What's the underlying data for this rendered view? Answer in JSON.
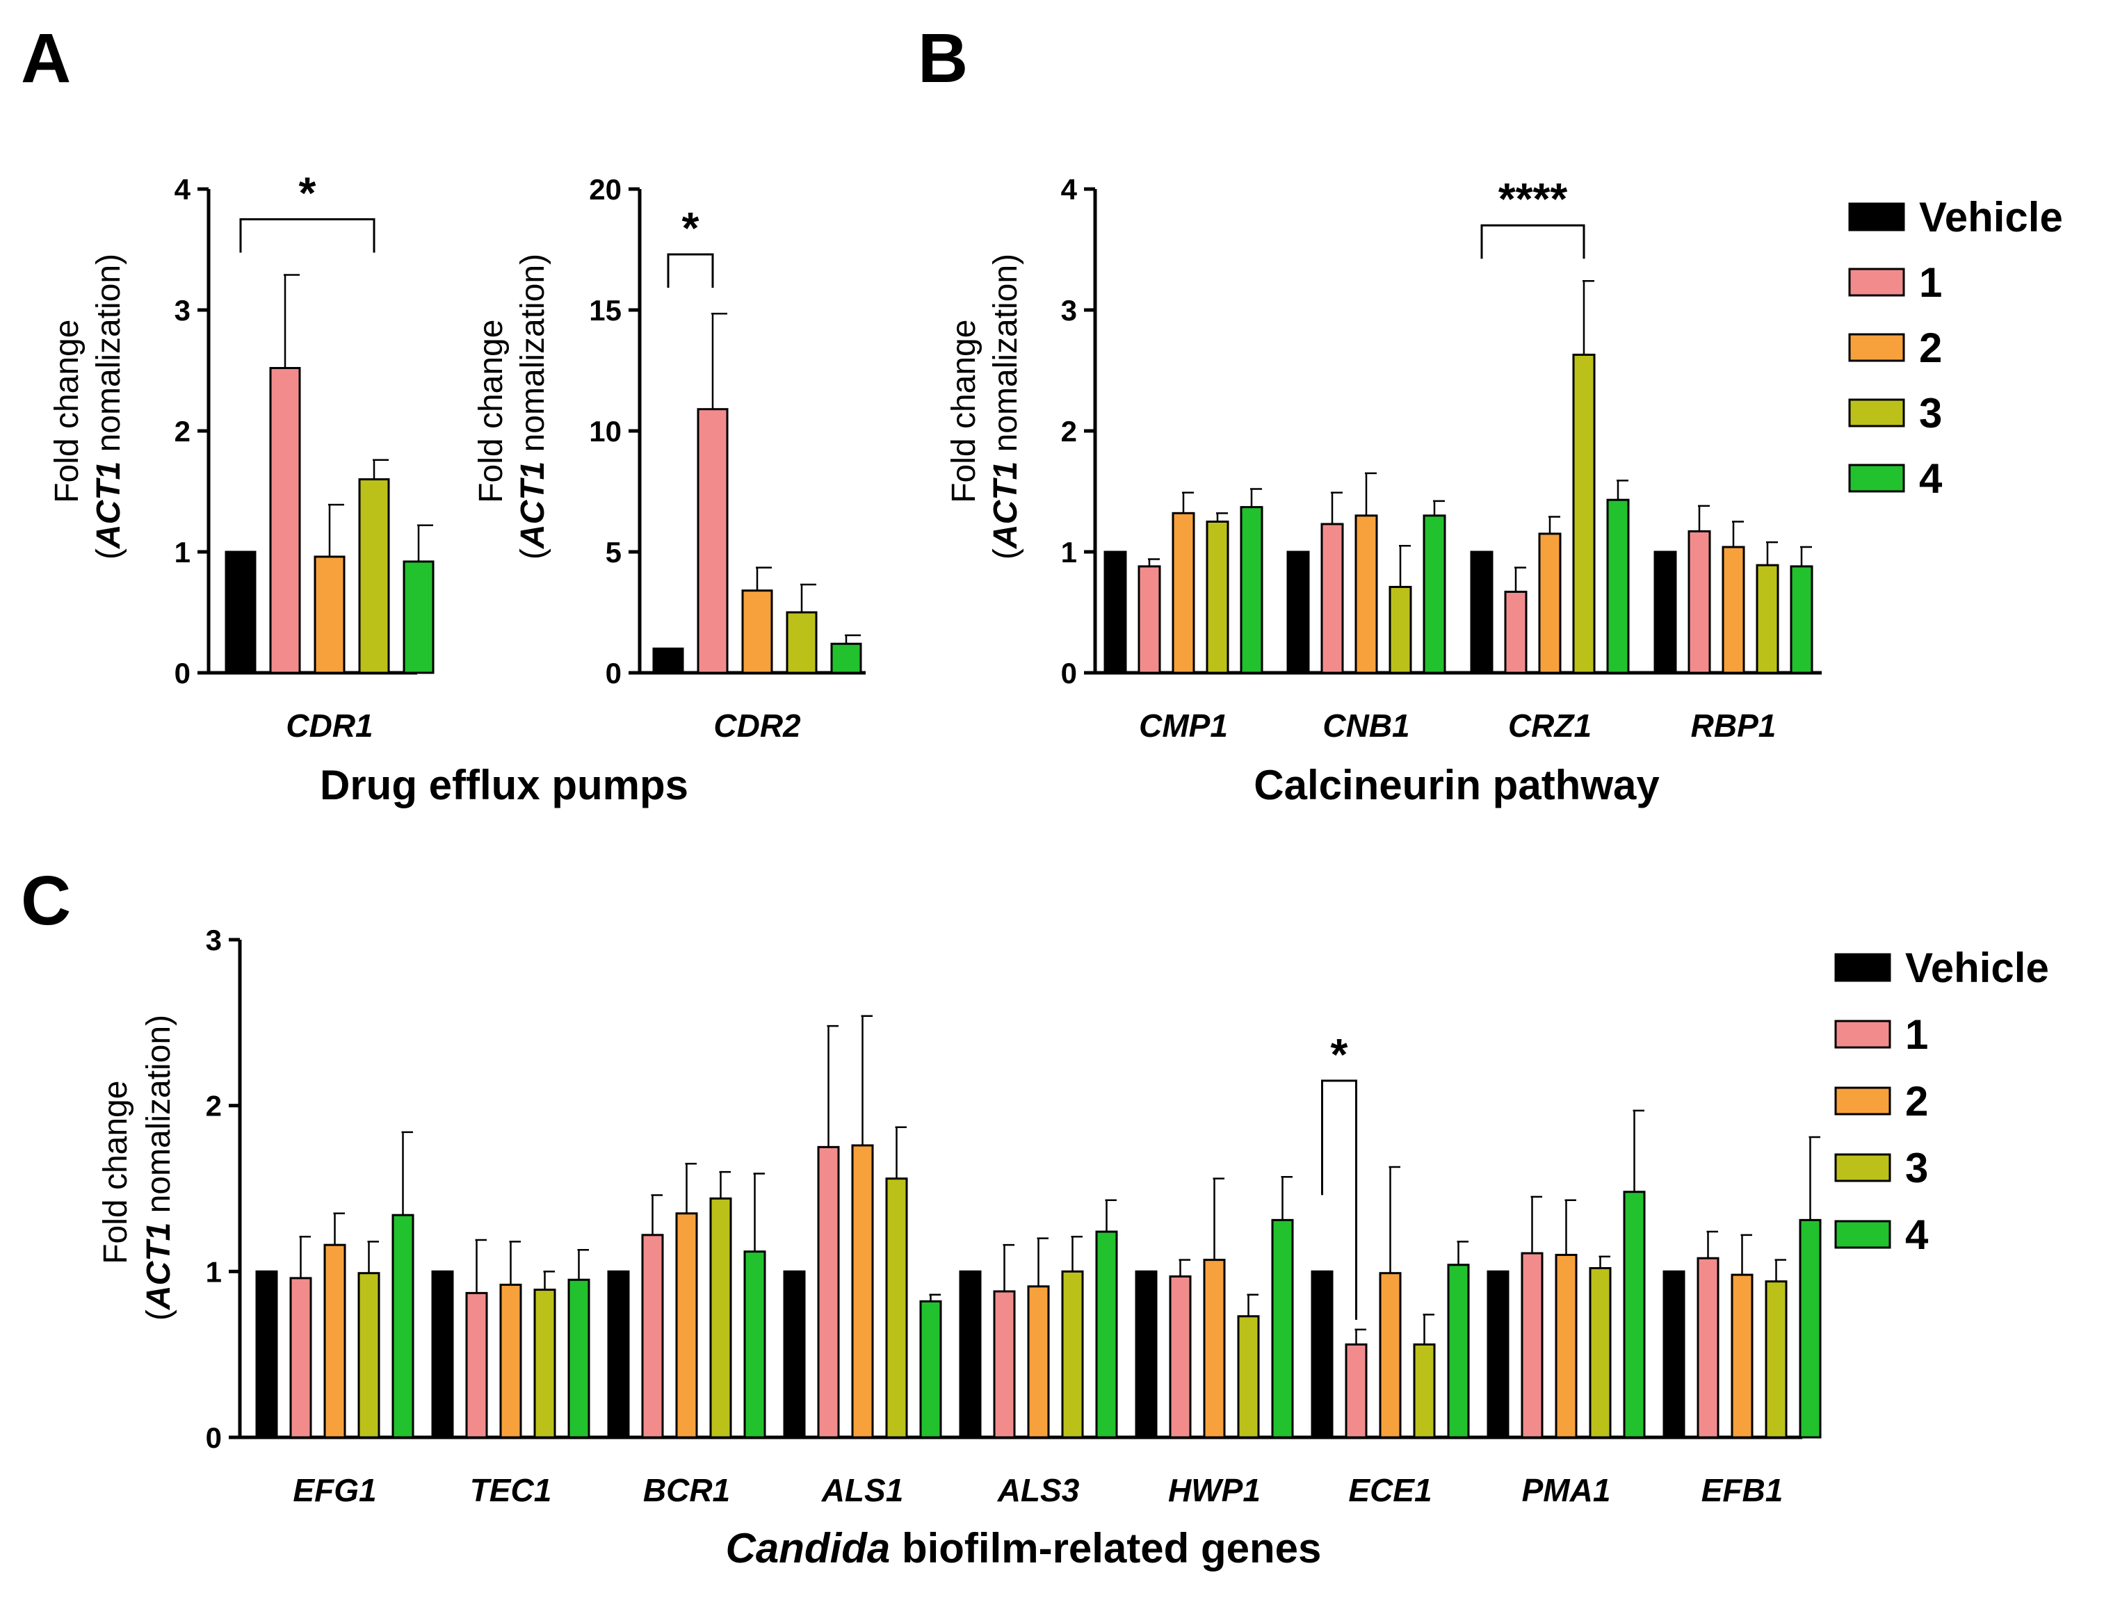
{
  "series_colors": {
    "Vehicle": "#000000",
    "1": "#f28c8c",
    "2": "#f7a13c",
    "3": "#bcc11a",
    "4": "#22c12e"
  },
  "legend": {
    "series": [
      "Vehicle",
      "1",
      "2",
      "3",
      "4"
    ]
  },
  "panels": {
    "a": {
      "letter": "A",
      "group_label": "Drug efflux pumps"
    },
    "b": {
      "letter": "B",
      "group_label": "Calcineurin pathway"
    },
    "c": {
      "letter": "C",
      "group_label_italic": "Candida",
      "group_label_rest": " biofilm-related genes"
    }
  },
  "y_axis_label": {
    "line1": "Fold change",
    "open": "(",
    "gene": "ACT1",
    "rest": " nomalization)"
  },
  "chart_data": [
    {
      "id": "A1",
      "type": "bar",
      "title": "",
      "xlabel": "Drug efflux pumps",
      "ylabel": "Fold change (ACT1 nomalization)",
      "ylim": [
        0,
        4
      ],
      "yticks": [
        0,
        1,
        2,
        3,
        4
      ],
      "categories": [
        "CDR1"
      ],
      "series": [
        {
          "name": "Vehicle",
          "values": [
            1.0
          ],
          "errors": [
            0
          ]
        },
        {
          "name": "1",
          "values": [
            2.52
          ],
          "errors": [
            0.77
          ]
        },
        {
          "name": "2",
          "values": [
            0.96
          ],
          "errors": [
            0.43
          ]
        },
        {
          "name": "3",
          "values": [
            1.6
          ],
          "errors": [
            0.16
          ]
        },
        {
          "name": "4",
          "values": [
            0.92
          ],
          "errors": [
            0.3
          ]
        }
      ],
      "significance": [
        {
          "category": "CDR1",
          "from": "Vehicle",
          "to": "3",
          "label": "*",
          "y": 3.75
        }
      ]
    },
    {
      "id": "A2",
      "type": "bar",
      "title": "",
      "xlabel": "Drug efflux pumps",
      "ylabel": "Fold change (ACT1 nomalization)",
      "ylim": [
        0,
        20
      ],
      "yticks": [
        0,
        5,
        10,
        15,
        20
      ],
      "categories": [
        "CDR2"
      ],
      "series": [
        {
          "name": "Vehicle",
          "values": [
            1.0
          ],
          "errors": [
            0
          ]
        },
        {
          "name": "1",
          "values": [
            10.9
          ],
          "errors": [
            3.95
          ]
        },
        {
          "name": "2",
          "values": [
            3.4
          ],
          "errors": [
            0.95
          ]
        },
        {
          "name": "3",
          "values": [
            2.5
          ],
          "errors": [
            1.15
          ]
        },
        {
          "name": "4",
          "values": [
            1.2
          ],
          "errors": [
            0.35
          ]
        }
      ],
      "significance": [
        {
          "category": "CDR2",
          "from": "Vehicle",
          "to": "1",
          "label": "*",
          "y": 17.3
        }
      ]
    },
    {
      "id": "B",
      "type": "bar",
      "title": "",
      "xlabel": "Calcineurin pathway",
      "ylabel": "Fold change (ACT1 nomalization)",
      "ylim": [
        0,
        4
      ],
      "yticks": [
        0,
        1,
        2,
        3,
        4
      ],
      "categories": [
        "CMP1",
        "CNB1",
        "CRZ1",
        "RBP1"
      ],
      "series": [
        {
          "name": "Vehicle",
          "values": [
            1.0,
            1.0,
            1.0,
            1.0
          ],
          "errors": [
            0,
            0,
            0,
            0
          ]
        },
        {
          "name": "1",
          "values": [
            0.88,
            1.23,
            0.67,
            1.17
          ],
          "errors": [
            0.06,
            0.26,
            0.2,
            0.21
          ]
        },
        {
          "name": "2",
          "values": [
            1.32,
            1.3,
            1.15,
            1.04
          ],
          "errors": [
            0.17,
            0.35,
            0.14,
            0.21
          ]
        },
        {
          "name": "3",
          "values": [
            1.25,
            0.71,
            2.63,
            0.89
          ],
          "errors": [
            0.07,
            0.34,
            0.61,
            0.19
          ]
        },
        {
          "name": "4",
          "values": [
            1.37,
            1.3,
            1.43,
            0.88
          ],
          "errors": [
            0.15,
            0.12,
            0.16,
            0.16
          ]
        }
      ],
      "significance": [
        {
          "category": "CRZ1",
          "from": "Vehicle",
          "to": "3",
          "label": "****",
          "y": 3.7
        }
      ]
    },
    {
      "id": "C",
      "type": "bar",
      "title": "",
      "xlabel": "Candida biofilm-related genes",
      "ylabel": "Fold change (ACT1 nomalization)",
      "ylim": [
        0,
        3
      ],
      "yticks": [
        0,
        1,
        2,
        3
      ],
      "categories": [
        "EFG1",
        "TEC1",
        "BCR1",
        "ALS1",
        "ALS3",
        "HWP1",
        "ECE1",
        "PMA1",
        "EFB1"
      ],
      "series": [
        {
          "name": "Vehicle",
          "values": [
            1.0,
            1.0,
            1.0,
            1.0,
            1.0,
            1.0,
            1.0,
            1.0,
            1.0
          ],
          "errors": [
            0,
            0,
            0,
            0,
            0,
            0,
            0,
            0,
            0
          ]
        },
        {
          "name": "1",
          "values": [
            0.96,
            0.87,
            1.22,
            1.75,
            0.88,
            0.97,
            0.56,
            1.11,
            1.08
          ],
          "errors": [
            0.25,
            0.32,
            0.24,
            0.73,
            0.28,
            0.1,
            0.09,
            0.34,
            0.16
          ]
        },
        {
          "name": "2",
          "values": [
            1.16,
            0.92,
            1.35,
            1.76,
            0.91,
            1.07,
            0.99,
            1.1,
            0.98
          ],
          "errors": [
            0.19,
            0.26,
            0.3,
            0.78,
            0.29,
            0.49,
            0.64,
            0.33,
            0.24
          ]
        },
        {
          "name": "3",
          "values": [
            0.99,
            0.89,
            1.44,
            1.56,
            1.0,
            0.73,
            0.56,
            1.02,
            0.94
          ],
          "errors": [
            0.19,
            0.11,
            0.16,
            0.31,
            0.21,
            0.13,
            0.18,
            0.07,
            0.13
          ]
        },
        {
          "name": "4",
          "values": [
            1.34,
            0.95,
            1.12,
            0.82,
            1.24,
            1.31,
            1.04,
            1.48,
            1.31
          ],
          "errors": [
            0.5,
            0.18,
            0.47,
            0.04,
            0.19,
            0.26,
            0.14,
            0.49,
            0.5
          ]
        }
      ],
      "significance": [
        {
          "category": "ECE1",
          "from": "Vehicle",
          "to": "1",
          "label": "*",
          "y": 2.15
        }
      ]
    }
  ]
}
